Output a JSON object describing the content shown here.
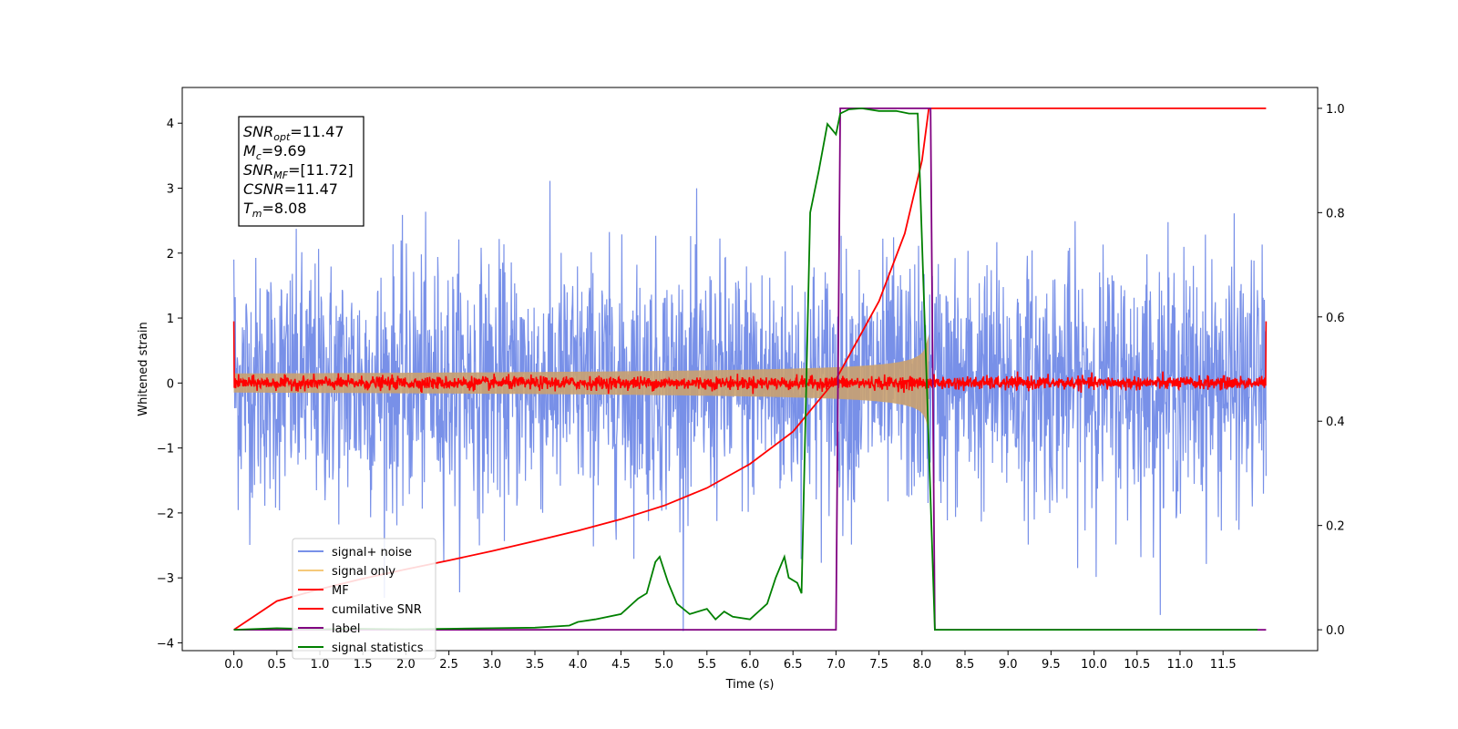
{
  "chart_data": {
    "type": "line",
    "xlabel": "Time (s)",
    "ylabel": "Whitened strain",
    "xlim": [
      -0.6,
      12.6
    ],
    "ylim": [
      -4.12,
      4.55
    ],
    "y2lim": [
      -0.04,
      1.04
    ],
    "xticks": [
      "0.0",
      "0.5",
      "1.0",
      "1.5",
      "2.0",
      "2.5",
      "3.0",
      "3.5",
      "4.0",
      "4.5",
      "5.0",
      "5.5",
      "6.0",
      "6.5",
      "7.0",
      "7.5",
      "8.0",
      "8.5",
      "9.0",
      "9.5",
      "10.0",
      "10.5",
      "11.0",
      "11.5"
    ],
    "yticks": [
      "4",
      "3",
      "2",
      "1",
      "0",
      "−1",
      "−2",
      "−3",
      "−4"
    ],
    "y2ticks": [
      "1.0",
      "0.8",
      "0.6",
      "0.4",
      "0.2",
      "0.0"
    ],
    "grid": false,
    "legend_position": "lower-left",
    "series": [
      {
        "name": "signal+ noise",
        "color": "#7890e8",
        "axis": "left",
        "kind": "noise",
        "sigma": 0.95,
        "x_range": [
          0.0,
          12.0
        ]
      },
      {
        "name": "signal only",
        "color": "#f5c97a",
        "axis": "left",
        "kind": "chirp",
        "t_merger": 8.08,
        "peak_amplitude": 0.75
      },
      {
        "name": "MF",
        "color": "#ff0000",
        "axis": "left",
        "kind": "noise",
        "sigma": 0.05,
        "x_range": [
          0.0,
          12.0
        ]
      },
      {
        "name": "cumilative SNR",
        "color": "#ff0000",
        "axis": "right",
        "x": [
          0.0,
          0.5,
          1.0,
          1.5,
          2.0,
          2.5,
          3.0,
          3.5,
          4.0,
          4.5,
          5.0,
          5.5,
          6.0,
          6.5,
          7.0,
          7.5,
          7.8,
          8.0,
          8.08,
          8.1,
          12.0
        ],
        "y": [
          0.0,
          0.055,
          0.078,
          0.098,
          0.116,
          0.133,
          0.151,
          0.17,
          0.19,
          0.212,
          0.238,
          0.272,
          0.318,
          0.38,
          0.48,
          0.63,
          0.76,
          0.9,
          1.0,
          1.0,
          1.0
        ]
      },
      {
        "name": "label",
        "color": "#800080",
        "axis": "right",
        "x": [
          0.0,
          7.0,
          7.05,
          8.1,
          8.15,
          12.0
        ],
        "y": [
          0.0,
          0.0,
          1.0,
          1.0,
          0.0,
          0.0
        ]
      },
      {
        "name": "signal statistics",
        "color": "#008000",
        "axis": "right",
        "x": [
          0.0,
          0.5,
          1.0,
          1.5,
          2.0,
          2.5,
          3.0,
          3.5,
          3.9,
          4.0,
          4.2,
          4.5,
          4.7,
          4.8,
          4.9,
          4.95,
          5.05,
          5.15,
          5.3,
          5.5,
          5.6,
          5.7,
          5.8,
          6.0,
          6.2,
          6.3,
          6.4,
          6.45,
          6.55,
          6.6,
          6.7,
          6.8,
          6.9,
          7.0,
          7.05,
          7.15,
          7.3,
          7.5,
          7.7,
          7.85,
          7.95,
          8.05,
          8.15,
          8.3,
          10.0,
          11.9
        ],
        "y": [
          0.0,
          0.003,
          0.001,
          0.002,
          0.001,
          0.002,
          0.003,
          0.004,
          0.008,
          0.015,
          0.02,
          0.03,
          0.06,
          0.07,
          0.13,
          0.14,
          0.09,
          0.05,
          0.03,
          0.04,
          0.02,
          0.035,
          0.025,
          0.02,
          0.05,
          0.1,
          0.14,
          0.1,
          0.09,
          0.07,
          0.8,
          0.88,
          0.97,
          0.95,
          0.99,
          0.998,
          1.0,
          0.995,
          0.995,
          0.99,
          0.99,
          0.5,
          0.0,
          0.0,
          0.0,
          0.0
        ]
      }
    ],
    "annotation_box": [
      {
        "label": "SNR",
        "sub": "opt",
        "value": "=11.47"
      },
      {
        "label": "M",
        "sub": "c",
        "value": "=9.69"
      },
      {
        "label": "SNR",
        "sub": "MF",
        "value": "=[11.72]"
      },
      {
        "label": "CSNR",
        "sub": "",
        "value": "=11.47"
      },
      {
        "label": "T",
        "sub": "m",
        "value": "=8.08"
      }
    ]
  }
}
